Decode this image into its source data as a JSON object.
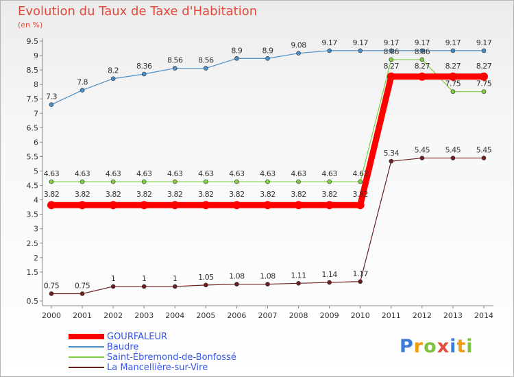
{
  "header": {
    "title": "Evolution du Taux de Taxe d'Habitation",
    "unit": "(en %)"
  },
  "chart_data": {
    "type": "line",
    "title": "Evolution du Taux de Taxe d'Habitation",
    "ylabel": "(en %)",
    "x": [
      "2000",
      "2001",
      "2002",
      "2003",
      "2004",
      "2005",
      "2006",
      "2007",
      "2008",
      "2009",
      "2010",
      "2011",
      "2012",
      "2013",
      "2014"
    ],
    "ylim": [
      0.5,
      9.5
    ],
    "yticks": [
      0.5,
      1.5,
      2,
      2.5,
      3,
      3.5,
      4,
      4.5,
      5,
      5.5,
      6,
      6.5,
      7,
      7.5,
      8,
      8.5,
      9,
      9.5
    ],
    "grid": false,
    "legend_position": "bottom-left",
    "series": [
      {
        "name": "GOURFALEUR",
        "color": "#ff0000",
        "values": [
          3.82,
          3.82,
          3.82,
          3.82,
          3.82,
          3.82,
          3.82,
          3.82,
          3.82,
          3.82,
          3.82,
          8.27,
          8.27,
          8.27,
          8.27
        ],
        "labels": [
          "3.82",
          "3.82",
          "3.82",
          "3.82",
          "3.82",
          "3.82",
          "3.82",
          "3.82",
          "3.82",
          "3.82",
          "3.82",
          "8.27",
          "8.27",
          "8.27",
          "8.27"
        ]
      },
      {
        "name": "Baudre",
        "color": "#4a8fc9",
        "values": [
          7.3,
          7.8,
          8.2,
          8.36,
          8.56,
          8.56,
          8.9,
          8.9,
          9.08,
          9.17,
          9.17,
          9.17,
          9.17,
          9.17,
          9.17
        ],
        "labels": [
          "7.3",
          "7.8",
          "8.2",
          "8.36",
          "8.56",
          "8.56",
          "8.9",
          "8.9",
          "9.08",
          "9.17",
          "9.17",
          "9.17",
          "9.17",
          "9.17",
          "9.17"
        ]
      },
      {
        "name": "Saint-Ébremond-de-Bonfossé",
        "color": "#7fcf3f",
        "values": [
          4.63,
          4.63,
          4.63,
          4.63,
          4.63,
          4.63,
          4.63,
          4.63,
          4.63,
          4.63,
          4.63,
          8.86,
          8.86,
          7.75,
          7.75
        ],
        "labels": [
          "4.63",
          "4.63",
          "4.63",
          "4.63",
          "4.63",
          "4.63",
          "4.63",
          "4.63",
          "4.63",
          "4.63",
          "4.63",
          "8.86",
          "8.86",
          "7.75",
          "7.75"
        ]
      },
      {
        "name": "La Mancellière-sur-Vire",
        "color": "#6b1e1e",
        "values": [
          0.75,
          0.75,
          1,
          1,
          1,
          1.05,
          1.08,
          1.08,
          1.11,
          1.14,
          1.17,
          5.34,
          5.45,
          5.45,
          5.45
        ],
        "labels": [
          "0.75",
          "0.75",
          "1",
          "1",
          "1",
          "1.05",
          "1.08",
          "1.08",
          "1.11",
          "1.14",
          "1.17",
          "5.34",
          "5.45",
          "5.45",
          "5.45"
        ]
      }
    ]
  },
  "legend": {
    "items": [
      {
        "label": "GOURFALEUR",
        "color": "#ff0000"
      },
      {
        "label": "Baudre",
        "color": "#4a8fc9"
      },
      {
        "label": "Saint-Ébremond-de-Bonfossé",
        "color": "#7fcf3f"
      },
      {
        "label": "La Mancellière-sur-Vire",
        "color": "#6b1e1e"
      }
    ]
  },
  "logo": {
    "letters": [
      "P",
      "r",
      "o",
      "x",
      "i",
      "t",
      "i"
    ],
    "colors": [
      "#3a7bd5",
      "#f39c12",
      "#7fc241",
      "#e74c3c",
      "#3a7bd5",
      "#f39c12",
      "#7fc241"
    ]
  }
}
